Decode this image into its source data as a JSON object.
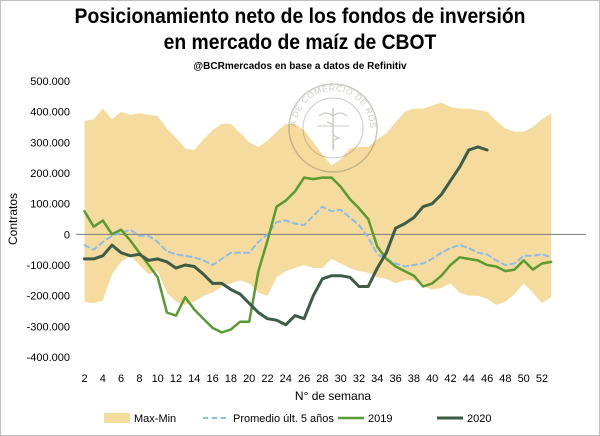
{
  "chart_data": {
    "type": "line",
    "title_line1": "Posicionamiento neto de los fondos de inversión",
    "title_line2": "en mercado de maíz de CBOT",
    "subtitle": "@BCRmercados en base a datos de Refinitiv",
    "watermark": "BOLSA DE COMERCIO DE ROSARIO",
    "xlabel": "N° de semana",
    "ylabel": "Contratos",
    "xlim": [
      1,
      53
    ],
    "ylim": [
      -400000,
      500000
    ],
    "x_ticks": [
      2,
      4,
      6,
      8,
      10,
      12,
      14,
      16,
      18,
      20,
      22,
      24,
      26,
      28,
      30,
      32,
      34,
      36,
      38,
      40,
      42,
      44,
      46,
      48,
      50,
      52
    ],
    "y_ticks": [
      -400000,
      -300000,
      -200000,
      -100000,
      0,
      100000,
      200000,
      300000,
      400000,
      500000
    ],
    "y_tick_labels": [
      "-400.000",
      "-300.000",
      "-200.000",
      "-100.000",
      "0",
      "100.000",
      "200.000",
      "300.000",
      "400.000",
      "500.000"
    ],
    "grid": false,
    "legend_position": "bottom",
    "band": {
      "name": "Max-Min",
      "color": "#f5dc9e",
      "x": [
        2,
        3,
        4,
        5,
        6,
        7,
        8,
        9,
        10,
        11,
        12,
        13,
        14,
        15,
        16,
        17,
        18,
        19,
        20,
        21,
        22,
        23,
        24,
        25,
        26,
        27,
        28,
        29,
        30,
        31,
        32,
        33,
        34,
        35,
        36,
        37,
        38,
        39,
        40,
        41,
        42,
        43,
        44,
        45,
        46,
        47,
        48,
        49,
        50,
        51,
        52,
        53
      ],
      "max": [
        370000,
        375000,
        410000,
        375000,
        400000,
        390000,
        395000,
        390000,
        385000,
        345000,
        315000,
        280000,
        275000,
        310000,
        340000,
        360000,
        360000,
        330000,
        300000,
        285000,
        305000,
        335000,
        360000,
        360000,
        340000,
        300000,
        260000,
        225000,
        245000,
        280000,
        285000,
        285000,
        310000,
        330000,
        365000,
        400000,
        410000,
        410000,
        420000,
        430000,
        415000,
        410000,
        410000,
        405000,
        400000,
        370000,
        345000,
        335000,
        335000,
        350000,
        375000,
        395000
      ],
      "min": [
        -220000,
        -225000,
        -215000,
        -130000,
        -90000,
        -70000,
        -100000,
        -130000,
        -120000,
        -190000,
        -220000,
        -230000,
        -220000,
        -200000,
        -190000,
        -170000,
        -160000,
        -150000,
        -160000,
        -190000,
        -200000,
        -140000,
        -120000,
        -110000,
        -100000,
        -110000,
        -110000,
        -80000,
        -95000,
        -110000,
        -120000,
        -125000,
        -140000,
        -145000,
        -160000,
        -150000,
        -150000,
        -170000,
        -180000,
        -175000,
        -160000,
        -190000,
        -200000,
        -200000,
        -210000,
        -230000,
        -220000,
        -195000,
        -160000,
        -190000,
        -225000,
        -205000
      ]
    },
    "series": [
      {
        "name": "Promedio últ. 5 años",
        "color": "#8fbce6",
        "dash": true,
        "width": 2,
        "x": [
          2,
          3,
          4,
          5,
          6,
          7,
          8,
          9,
          10,
          11,
          12,
          13,
          14,
          15,
          16,
          17,
          18,
          19,
          20,
          21,
          22,
          23,
          24,
          25,
          26,
          27,
          28,
          29,
          30,
          31,
          32,
          33,
          34,
          35,
          36,
          37,
          38,
          39,
          40,
          41,
          42,
          43,
          44,
          45,
          46,
          47,
          48,
          49,
          50,
          51,
          52,
          53
        ],
        "values": [
          -35000,
          -50000,
          -25000,
          -5000,
          5000,
          15000,
          -5000,
          -5000,
          -25000,
          -55000,
          -65000,
          -70000,
          -75000,
          -85000,
          -100000,
          -80000,
          -60000,
          -60000,
          -60000,
          -25000,
          0,
          40000,
          45000,
          35000,
          30000,
          60000,
          90000,
          75000,
          80000,
          55000,
          30000,
          -10000,
          -65000,
          -80000,
          -95000,
          -105000,
          -100000,
          -95000,
          -80000,
          -60000,
          -45000,
          -35000,
          -45000,
          -60000,
          -65000,
          -85000,
          -100000,
          -95000,
          -70000,
          -70000,
          -65000,
          -75000
        ]
      },
      {
        "name": "2019",
        "color": "#5a9a32",
        "dash": false,
        "width": 2.5,
        "x": [
          2,
          3,
          4,
          5,
          6,
          7,
          8,
          9,
          10,
          11,
          12,
          13,
          14,
          15,
          16,
          17,
          18,
          19,
          20,
          21,
          22,
          23,
          24,
          25,
          26,
          27,
          28,
          29,
          30,
          31,
          32,
          33,
          34,
          35,
          36,
          37,
          38,
          39,
          40,
          41,
          42,
          43,
          44,
          45,
          46,
          47,
          48,
          49,
          50,
          51,
          52,
          53
        ],
        "values": [
          75000,
          25000,
          45000,
          0,
          15000,
          -20000,
          -60000,
          -100000,
          -140000,
          -255000,
          -265000,
          -205000,
          -245000,
          -275000,
          -305000,
          -320000,
          -310000,
          -285000,
          -285000,
          -120000,
          -20000,
          90000,
          110000,
          140000,
          185000,
          180000,
          185000,
          185000,
          155000,
          115000,
          85000,
          50000,
          -40000,
          -80000,
          -105000,
          -120000,
          -135000,
          -170000,
          -160000,
          -135000,
          -100000,
          -75000,
          -80000,
          -85000,
          -100000,
          -105000,
          -120000,
          -115000,
          -85000,
          -115000,
          -95000,
          -90000
        ]
      },
      {
        "name": "2020",
        "color": "#3d5c47",
        "dash": false,
        "width": 3,
        "x": [
          2,
          3,
          4,
          5,
          6,
          7,
          8,
          9,
          10,
          11,
          12,
          13,
          14,
          15,
          16,
          17,
          18,
          19,
          20,
          21,
          22,
          23,
          24,
          25,
          26,
          27,
          28,
          29,
          30,
          31,
          32,
          33,
          34,
          35,
          36,
          37,
          38,
          39,
          40,
          41,
          42,
          43,
          44,
          45,
          46
        ],
        "values": [
          -80000,
          -80000,
          -70000,
          -35000,
          -60000,
          -70000,
          -65000,
          -85000,
          -80000,
          -90000,
          -110000,
          -100000,
          -105000,
          -130000,
          -160000,
          -160000,
          -180000,
          -195000,
          -225000,
          -255000,
          -275000,
          -280000,
          -295000,
          -265000,
          -275000,
          -200000,
          -145000,
          -135000,
          -135000,
          -140000,
          -170000,
          -170000,
          -110000,
          -60000,
          20000,
          35000,
          55000,
          90000,
          100000,
          130000,
          175000,
          220000,
          275000,
          285000,
          275000
        ]
      }
    ]
  }
}
